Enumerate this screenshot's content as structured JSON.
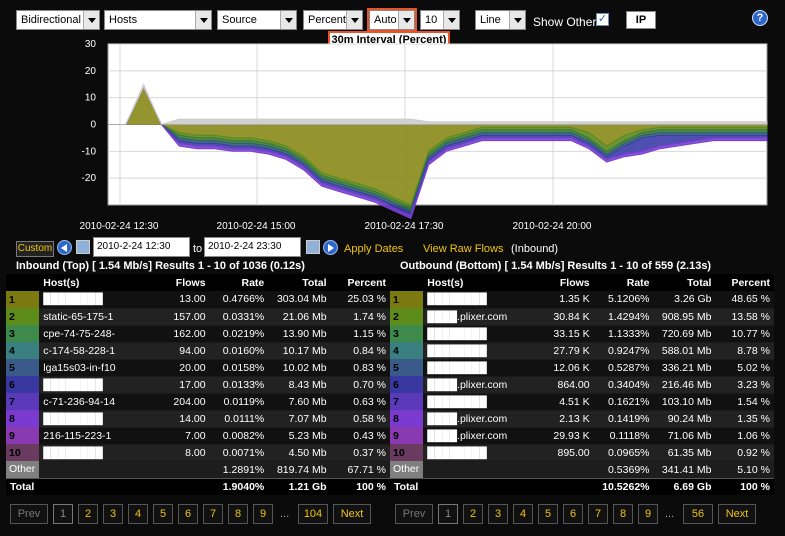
{
  "toolbar": {
    "direction": "Bidirectional",
    "report": "Hosts",
    "mode": "Source",
    "unit": "Percent",
    "interval": "Auto",
    "count": "10",
    "chart_type": "Line",
    "show_other_label": "Show Other",
    "show_other_checked": "✓",
    "ip_button": "IP",
    "help": "?",
    "interval_tooltip": "30m Interval (Percent)"
  },
  "chart_data": {
    "type": "area",
    "y_ticks": [
      "30",
      "20",
      "10",
      "0",
      "-10",
      "-20"
    ],
    "ylim": [
      -30,
      30
    ],
    "x_ticks": [
      "2010-02-24 12:30",
      "2010-02-24 15:00",
      "2010-02-24 17:30",
      "2010-02-24 20:00"
    ],
    "grid": true,
    "series": [
      {
        "color": "#8a8a1a",
        "values": [
          0,
          0,
          14,
          0,
          -3,
          -4,
          -4,
          -5,
          -5,
          -6,
          -8,
          -12,
          -18,
          -20,
          -22,
          -24,
          -27,
          -30,
          -10,
          -5,
          -3,
          -1,
          -1,
          -1,
          -1,
          -1,
          -1,
          -3,
          -8,
          -4,
          -2,
          -1,
          -1,
          -1,
          -1,
          -1,
          -1,
          -1
        ]
      },
      {
        "color": "#5b8a1f",
        "values": [
          0,
          0,
          0,
          0,
          -1,
          -1,
          -1,
          -1,
          -1,
          -1,
          -1,
          -1,
          -1,
          -1,
          -1,
          -1,
          -1,
          -1,
          -1,
          -1,
          -1,
          -1,
          -1,
          -1,
          -1,
          -1,
          -1,
          -2,
          -2,
          -2,
          -1,
          -1,
          -1,
          -1,
          -1,
          -1,
          -1,
          -1
        ]
      },
      {
        "color": "#3a7a35",
        "values": [
          0,
          0,
          0,
          0,
          -1,
          -1,
          -1,
          -1,
          -1,
          -1,
          -1,
          -1,
          -1,
          -1,
          -1,
          -1,
          -1,
          -1,
          -1,
          -1,
          -1,
          -1,
          -1,
          -1,
          -1,
          -1,
          -1,
          -1,
          -1,
          -1,
          -1,
          -1,
          -1,
          -1,
          -1,
          -1,
          -1,
          -1
        ]
      },
      {
        "color": "#2f5f6f",
        "values": [
          0,
          0,
          0,
          0,
          -1,
          -1,
          -1,
          -1,
          -1,
          -1,
          -1,
          -1,
          -1,
          -1,
          -1,
          -1,
          -1,
          -1,
          -1,
          -1,
          -1,
          -1,
          -1,
          -1,
          -1,
          -1,
          -1,
          -1,
          -1,
          -1,
          -1,
          -1,
          -1,
          -1,
          -1,
          -1,
          -1,
          -1
        ]
      },
      {
        "color": "#3c3caa",
        "values": [
          0,
          0,
          0,
          0,
          -1,
          -1,
          -1,
          -1,
          -1,
          -1,
          -1,
          -1,
          -1,
          -1,
          -1,
          -1,
          -1,
          -1,
          -1,
          -1,
          -1,
          -1,
          -1,
          -1,
          -1,
          -1,
          -1,
          -1,
          -1,
          -3,
          -5,
          -4,
          -3,
          -2,
          -1,
          -1,
          -1,
          -1
        ]
      },
      {
        "color": "#7a3fd0",
        "values": [
          0,
          0,
          0,
          0,
          -1,
          -1,
          -1,
          -1,
          -1,
          -1,
          -1,
          -1,
          -1,
          -1,
          -1,
          -1,
          -1,
          -1,
          -1,
          -1,
          -1,
          -1,
          -1,
          -1,
          -1,
          -1,
          -1,
          -1,
          -1,
          -1,
          -1,
          -1,
          -1,
          -1,
          -1,
          -1,
          -1,
          -1
        ]
      },
      {
        "color": "#cccccc",
        "values": [
          0,
          0,
          1,
          0,
          2,
          2,
          2,
          2,
          2,
          2,
          2,
          2,
          2,
          2,
          2,
          2,
          2,
          2,
          1,
          1,
          1,
          1,
          1,
          1,
          1,
          1,
          1,
          1,
          1,
          1,
          1,
          1,
          1,
          1,
          1,
          1,
          1,
          1
        ]
      }
    ]
  },
  "date_controls": {
    "custom": "Custom",
    "from": "2010-2-24 12:30",
    "to_label": "to",
    "to": "2010-2-24 23:30",
    "apply": "Apply Dates",
    "raw_flows": "View Raw Flows",
    "raw_flows_suffix": "(Inbound)"
  },
  "inbound": {
    "title": "Inbound (Top) [ 1.54 Mb/s] Results 1 - 10 of 1036 (0.12s)",
    "headers": [
      "",
      "Host(s)",
      "Flows",
      "Rate",
      "Total",
      "Percent"
    ],
    "rows": [
      {
        "rank": "1",
        "color": "#7a7a10",
        "host": "████████",
        "flows": "13.00",
        "rate": "0.4766%",
        "total": "303.04 Mb",
        "percent": "25.03 %"
      },
      {
        "rank": "2",
        "color": "#5e8c1a",
        "host": "static-65-175-1",
        "flows": "157.00",
        "rate": "0.0331%",
        "total": "21.06 Mb",
        "percent": "1.74 %"
      },
      {
        "rank": "3",
        "color": "#3e8a4a",
        "host": "cpe-74-75-248-",
        "flows": "162.00",
        "rate": "0.0219%",
        "total": "13.90 Mb",
        "percent": "1.15 %"
      },
      {
        "rank": "4",
        "color": "#3a8080",
        "host": "c-174-58-228-1",
        "flows": "94.00",
        "rate": "0.0160%",
        "total": "10.17 Mb",
        "percent": "0.84 %"
      },
      {
        "rank": "5",
        "color": "#3a5a8a",
        "host": "lga15s03-in-f10",
        "flows": "20.00",
        "rate": "0.0158%",
        "total": "10.02 Mb",
        "percent": "0.83 %"
      },
      {
        "rank": "6",
        "color": "#3838a0",
        "host": "████████",
        "flows": "17.00",
        "rate": "0.0133%",
        "total": "8.43 Mb",
        "percent": "0.70 %"
      },
      {
        "rank": "7",
        "color": "#5a3ab8",
        "host": "c-71-236-94-14",
        "flows": "204.00",
        "rate": "0.0119%",
        "total": "7.60 Mb",
        "percent": "0.63 %"
      },
      {
        "rank": "8",
        "color": "#7a3ad0",
        "host": "████████",
        "flows": "14.00",
        "rate": "0.0111%",
        "total": "7.07 Mb",
        "percent": "0.58 %"
      },
      {
        "rank": "9",
        "color": "#8a3ab0",
        "host": "216-115-223-1",
        "flows": "7.00",
        "rate": "0.0082%",
        "total": "5.23 Mb",
        "percent": "0.43 %"
      },
      {
        "rank": "10",
        "color": "#6a3a60",
        "host": "████████",
        "flows": "8.00",
        "rate": "0.0071%",
        "total": "4.50 Mb",
        "percent": "0.37 %"
      }
    ],
    "other": {
      "label": "Other",
      "rate": "1.2891%",
      "total": "819.74 Mb",
      "percent": "67.71 %"
    },
    "total": {
      "label": "Total",
      "rate": "1.9040%",
      "total": "1.21 Gb",
      "percent": "100 %"
    }
  },
  "outbound": {
    "title": "Outbound (Bottom) [ 1.54 Mb/s] Results 1 - 10 of 559 (2.13s)",
    "headers": [
      "",
      "Host(s)",
      "Flows",
      "Rate",
      "Total",
      "Percent"
    ],
    "rows": [
      {
        "rank": "1",
        "color": "#7a7a10",
        "host": "████████",
        "flows": "1.35 K",
        "rate": "5.1206%",
        "total": "3.26 Gb",
        "percent": "48.65 %"
      },
      {
        "rank": "2",
        "color": "#5e8c1a",
        "host": "████.plixer.com",
        "flows": "30.84 K",
        "rate": "1.4294%",
        "total": "908.95 Mb",
        "percent": "13.58 %"
      },
      {
        "rank": "3",
        "color": "#3e8a4a",
        "host": "████████",
        "flows": "33.15 K",
        "rate": "1.1333%",
        "total": "720.69 Mb",
        "percent": "10.77 %"
      },
      {
        "rank": "4",
        "color": "#3a8080",
        "host": "████████",
        "flows": "27.79 K",
        "rate": "0.9247%",
        "total": "588.01 Mb",
        "percent": "8.78 %"
      },
      {
        "rank": "5",
        "color": "#3a5a8a",
        "host": "████████",
        "flows": "12.06 K",
        "rate": "0.5287%",
        "total": "336.21 Mb",
        "percent": "5.02 %"
      },
      {
        "rank": "6",
        "color": "#3838a0",
        "host": "████.plixer.com",
        "flows": "864.00",
        "rate": "0.3404%",
        "total": "216.46 Mb",
        "percent": "3.23 %"
      },
      {
        "rank": "7",
        "color": "#5a3ab8",
        "host": "████████",
        "flows": "4.51 K",
        "rate": "0.1621%",
        "total": "103.10 Mb",
        "percent": "1.54 %"
      },
      {
        "rank": "8",
        "color": "#7a3ad0",
        "host": "████.plixer.com",
        "flows": "2.13 K",
        "rate": "0.1419%",
        "total": "90.24 Mb",
        "percent": "1.35 %"
      },
      {
        "rank": "9",
        "color": "#8a3ab0",
        "host": "████.plixer.com",
        "flows": "29.93 K",
        "rate": "0.1118%",
        "total": "71.06 Mb",
        "percent": "1.06 %"
      },
      {
        "rank": "10",
        "color": "#6a3a60",
        "host": "████████",
        "flows": "895.00",
        "rate": "0.0965%",
        "total": "61.35 Mb",
        "percent": "0.92 %"
      }
    ],
    "other": {
      "label": "Other",
      "rate": "0.5369%",
      "total": "341.41 Mb",
      "percent": "5.10 %"
    },
    "total": {
      "label": "Total",
      "rate": "10.5262%",
      "total": "6.69 Gb",
      "percent": "100 %"
    }
  },
  "pager_in": {
    "prev": "Prev",
    "pages": [
      "1",
      "2",
      "3",
      "4",
      "5",
      "6",
      "7",
      "8",
      "9"
    ],
    "dots": "...",
    "last": "104",
    "next": "Next"
  },
  "pager_out": {
    "prev": "Prev",
    "pages": [
      "1",
      "2",
      "3",
      "4",
      "5",
      "6",
      "7",
      "8",
      "9"
    ],
    "dots": "...",
    "last": "56",
    "next": "Next"
  }
}
